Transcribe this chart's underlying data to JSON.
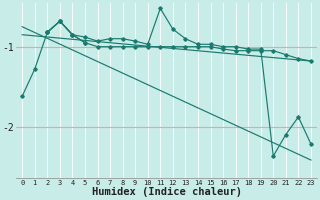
{
  "xlabel": "Humidex (Indice chaleur)",
  "bg_color": "#c8ece8",
  "line_color": "#1a7a6e",
  "hgrid_color": "#f0a0a0",
  "vgrid_color": "#ffffff",
  "xlim": [
    -0.5,
    23.5
  ],
  "ylim": [
    -2.65,
    -0.45
  ],
  "yticks": [
    -2,
    -1
  ],
  "xticks": [
    0,
    1,
    2,
    3,
    4,
    5,
    6,
    7,
    8,
    9,
    10,
    11,
    12,
    13,
    14,
    15,
    16,
    17,
    18,
    19,
    20,
    21,
    22,
    23
  ],
  "series_zigzag_x": [
    2,
    3,
    4,
    5,
    6,
    7,
    8,
    9,
    10,
    11,
    12,
    13,
    14,
    15,
    16,
    17,
    18,
    19,
    20,
    21,
    22,
    23
  ],
  "series_zigzag_y": [
    -0.82,
    -0.68,
    -0.85,
    -0.88,
    -0.93,
    -0.9,
    -0.9,
    -0.93,
    -0.97,
    -0.52,
    -0.78,
    -0.9,
    -0.97,
    -0.97,
    -1.0,
    -1.0,
    -1.03,
    -1.03,
    -2.37,
    -2.1,
    -1.88,
    -2.22
  ],
  "series_flat_x": [
    2,
    3,
    4,
    5,
    6,
    7,
    8,
    9,
    10,
    11,
    12,
    13,
    14,
    15,
    16,
    17,
    18,
    19,
    20,
    21,
    22,
    23
  ],
  "series_flat_y": [
    -0.82,
    -0.68,
    -0.85,
    -0.95,
    -1.0,
    -1.0,
    -1.0,
    -1.0,
    -1.0,
    -1.0,
    -1.0,
    -1.0,
    -1.0,
    -1.0,
    -1.03,
    -1.05,
    -1.05,
    -1.05,
    -1.05,
    -1.1,
    -1.15,
    -1.18
  ],
  "series_start_x": [
    0,
    1,
    2,
    3,
    4,
    5
  ],
  "series_start_y": [
    -1.62,
    -1.28,
    -0.82,
    -0.68,
    -0.85,
    -0.95
  ],
  "line1_x": [
    0,
    23
  ],
  "line1_y": [
    -0.85,
    -1.18
  ],
  "line2_x": [
    0,
    23
  ],
  "line2_y": [
    -0.75,
    -2.42
  ]
}
